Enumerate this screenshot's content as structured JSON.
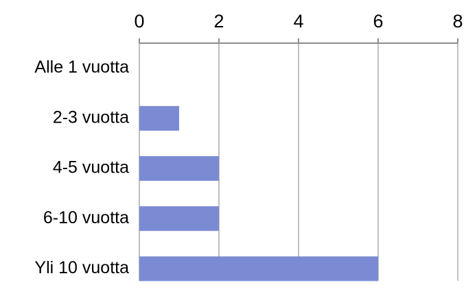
{
  "chart_data": {
    "type": "bar",
    "orientation": "horizontal",
    "categories": [
      "Alle 1 vuotta",
      "2-3 vuotta",
      "4-5 vuotta",
      "6-10 vuotta",
      "Yli 10 vuotta"
    ],
    "values": [
      0,
      1,
      2,
      2,
      6
    ],
    "xlim": [
      0,
      8
    ],
    "xticks": [
      "0",
      "2",
      "4",
      "6",
      "8"
    ],
    "x_axis_position": "top",
    "grid": true,
    "legend": "none",
    "title": "",
    "xlabel": "",
    "ylabel": ""
  },
  "colors": {
    "bar": "#7b8bd3",
    "grid": "#bfbfbf",
    "axis": "#8c8c8c"
  }
}
